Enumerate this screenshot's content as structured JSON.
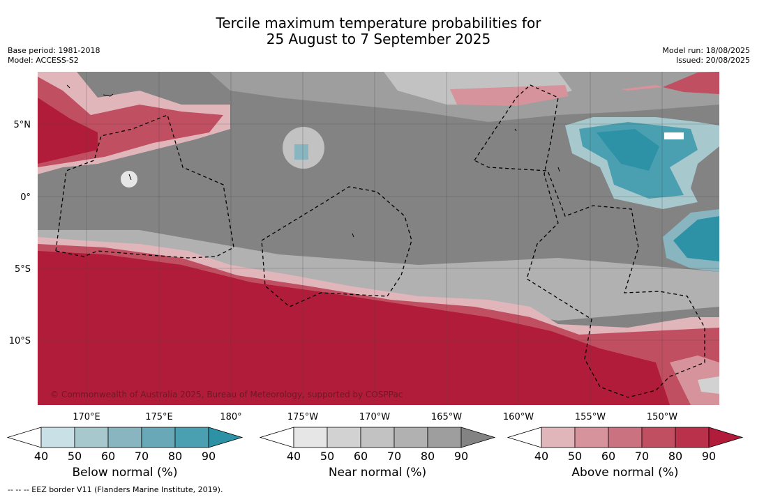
{
  "title_line1": "Tercile maximum temperature probabilities for",
  "title_line2": "25 August to 7 September 2025",
  "base_period": "Base period: 1981-2018",
  "model": "Model: ACCESS-S2",
  "model_run": "Model run: 18/08/2025",
  "issued": "Issued: 20/08/2025",
  "credit": "© Commonwealth of Australia 2025, Bureau of Meteorology, supported by COSPPac",
  "footnote": "-- -- -- EEZ border V11 (Flanders Marine Institute, 2019).",
  "lat_labels": [
    "5°N",
    "0°",
    "5°S",
    "10°S"
  ],
  "lon_labels": [
    "170°E",
    "175°E",
    "180°",
    "175°W",
    "170°W",
    "165°W",
    "160°W",
    "155°W",
    "150°W"
  ],
  "colorbars": [
    {
      "label": "Below normal (%)",
      "ticks": [
        "40",
        "50",
        "60",
        "70",
        "80",
        "90"
      ],
      "colors": [
        "#ffffff",
        "#c9e1e6",
        "#a7c8cd",
        "#88b5bf",
        "#69a9b7",
        "#4aa0b1",
        "#2e92a6"
      ]
    },
    {
      "label": "Near normal (%)",
      "ticks": [
        "40",
        "50",
        "60",
        "70",
        "80",
        "90"
      ],
      "colors": [
        "#ffffff",
        "#e6e6e6",
        "#d2d2d2",
        "#c2c2c2",
        "#b1b1b1",
        "#9e9e9e",
        "#838383"
      ]
    },
    {
      "label": "Above normal (%)",
      "ticks": [
        "40",
        "50",
        "60",
        "70",
        "80",
        "90"
      ],
      "colors": [
        "#ffffff",
        "#e1b6bb",
        "#d6939b",
        "#ca727f",
        "#c14f62",
        "#b9314a",
        "#b01c3a"
      ]
    }
  ],
  "palette": {
    "above_max": "#b01c3a",
    "near_max": "#838383",
    "below_max": "#2e92a6"
  }
}
